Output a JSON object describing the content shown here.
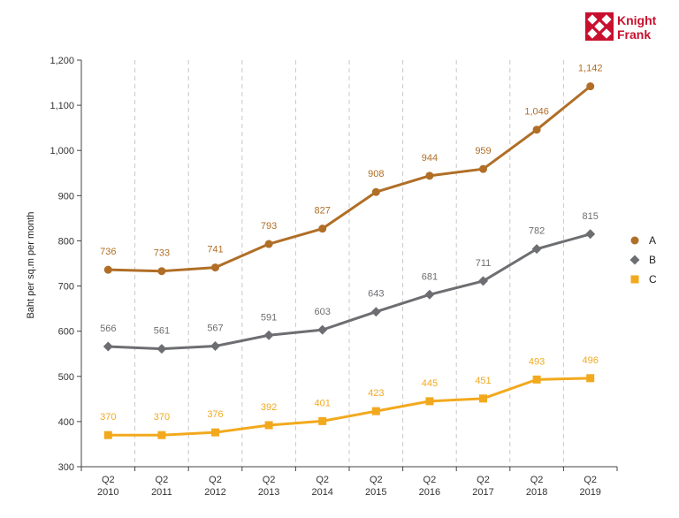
{
  "logo": {
    "line1": "Knight",
    "line2": "Frank",
    "color": "#c8102e"
  },
  "chart_data": {
    "type": "line",
    "categories": [
      [
        "Q2",
        "2010"
      ],
      [
        "Q2",
        "2011"
      ],
      [
        "Q2",
        "2012"
      ],
      [
        "Q2",
        "2013"
      ],
      [
        "Q2",
        "2014"
      ],
      [
        "Q2",
        "2015"
      ],
      [
        "Q2",
        "2016"
      ],
      [
        "Q2",
        "2017"
      ],
      [
        "Q2",
        "2018"
      ],
      [
        "Q2",
        "2019"
      ]
    ],
    "ylabel": "Baht per sq.m per month",
    "ylim": [
      300,
      1200
    ],
    "yticks": [
      "300",
      "400",
      "500",
      "600",
      "700",
      "800",
      "900",
      "1,000",
      "1,100",
      "1,200"
    ],
    "grid": "vertical dashed",
    "legend_position": "right",
    "series": [
      {
        "name": "A",
        "marker": "circle",
        "color": "#b06e26",
        "values": [
          736,
          733,
          741,
          793,
          827,
          908,
          944,
          959,
          1046,
          1142
        ],
        "labels": [
          "736",
          "733",
          "741",
          "793",
          "827",
          "908",
          "944",
          "959",
          "1,046",
          "1,142"
        ]
      },
      {
        "name": "B",
        "marker": "diamond",
        "color": "#6d6e71",
        "values": [
          566,
          561,
          567,
          591,
          603,
          643,
          681,
          711,
          782,
          815
        ],
        "labels": [
          "566",
          "561",
          "567",
          "591",
          "603",
          "643",
          "681",
          "711",
          "782",
          "815"
        ]
      },
      {
        "name": "C",
        "marker": "square",
        "color": "#f2a91e",
        "values": [
          370,
          370,
          376,
          392,
          401,
          423,
          445,
          451,
          493,
          496
        ],
        "labels": [
          "370",
          "370",
          "376",
          "392",
          "401",
          "423",
          "445",
          "451",
          "493",
          "496"
        ]
      }
    ]
  }
}
